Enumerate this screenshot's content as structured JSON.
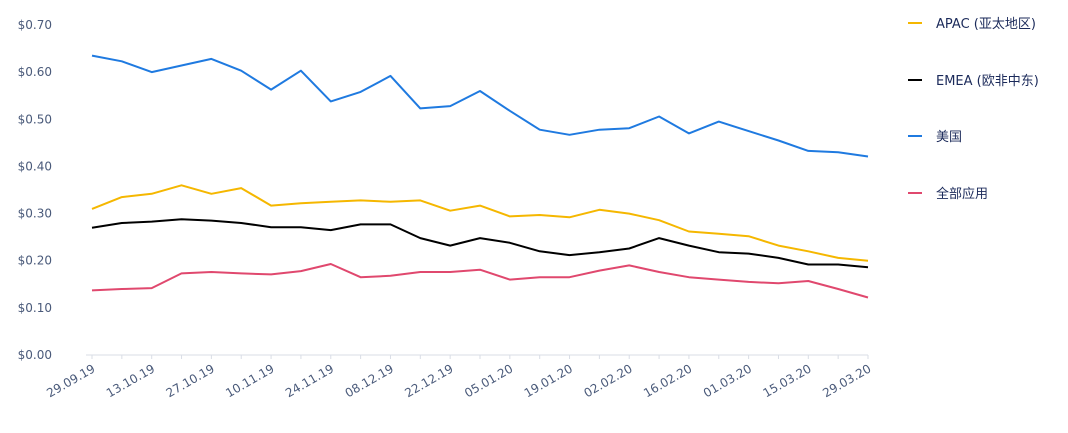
{
  "chart_data": {
    "type": "line",
    "ylim": [
      0,
      0.7
    ],
    "y_ticks": [
      "$0.00",
      "$0.10",
      "$0.20",
      "$0.30",
      "$0.40",
      "$0.50",
      "$0.60",
      "$0.70"
    ],
    "x_tick_labels": [
      "29.09.19",
      "13.10.19",
      "27.10.19",
      "10.11.19",
      "24.11.19",
      "08.12.19",
      "22.12.19",
      "05.01.20",
      "19.01.20",
      "02.02.20",
      "16.02.20",
      "01.03.20",
      "15.03.20",
      "29.03.20"
    ],
    "x": [
      "29.09.19",
      "06.10.19",
      "13.10.19",
      "20.10.19",
      "27.10.19",
      "03.11.19",
      "10.11.19",
      "17.11.19",
      "24.11.19",
      "01.12.19",
      "08.12.19",
      "15.12.19",
      "22.12.19",
      "29.12.19",
      "05.01.20",
      "12.01.20",
      "19.01.20",
      "26.01.20",
      "02.02.20",
      "09.02.20",
      "16.02.20",
      "23.02.20",
      "01.03.20",
      "08.03.20",
      "15.03.20",
      "22.03.20",
      "29.03.20"
    ],
    "grid": false,
    "legend_position": "right",
    "series": [
      {
        "name": "APAC (亚太地区)",
        "color": "#f5b700",
        "values": [
          0.31,
          0.335,
          0.342,
          0.36,
          0.342,
          0.354,
          0.317,
          0.322,
          0.325,
          0.328,
          0.325,
          0.328,
          0.306,
          0.317,
          0.294,
          0.297,
          0.292,
          0.308,
          0.3,
          0.286,
          0.262,
          0.257,
          0.252,
          0.232,
          0.22,
          0.206,
          0.2
        ]
      },
      {
        "name": "EMEA (欧非中东)",
        "color": "#000000",
        "values": [
          0.27,
          0.28,
          0.283,
          0.288,
          0.285,
          0.28,
          0.271,
          0.271,
          0.265,
          0.277,
          0.277,
          0.248,
          0.232,
          0.248,
          0.238,
          0.22,
          0.212,
          0.218,
          0.226,
          0.248,
          0.232,
          0.218,
          0.215,
          0.206,
          0.192,
          0.192,
          0.186
        ]
      },
      {
        "name": "美国",
        "color": "#1f7ae0",
        "values": [
          0.635,
          0.623,
          0.6,
          0.614,
          0.628,
          0.603,
          0.563,
          0.603,
          0.538,
          0.558,
          0.592,
          0.523,
          0.528,
          0.56,
          0.518,
          0.478,
          0.467,
          0.478,
          0.481,
          0.506,
          0.47,
          0.495,
          0.475,
          0.455,
          0.433,
          0.43,
          0.421
        ]
      },
      {
        "name": "全部应用",
        "color": "#e0486e",
        "values": [
          0.137,
          0.14,
          0.142,
          0.173,
          0.176,
          0.173,
          0.171,
          0.178,
          0.193,
          0.165,
          0.168,
          0.176,
          0.176,
          0.181,
          0.16,
          0.165,
          0.165,
          0.179,
          0.19,
          0.176,
          0.165,
          0.16,
          0.155,
          0.152,
          0.157,
          0.14,
          0.122
        ]
      }
    ]
  }
}
